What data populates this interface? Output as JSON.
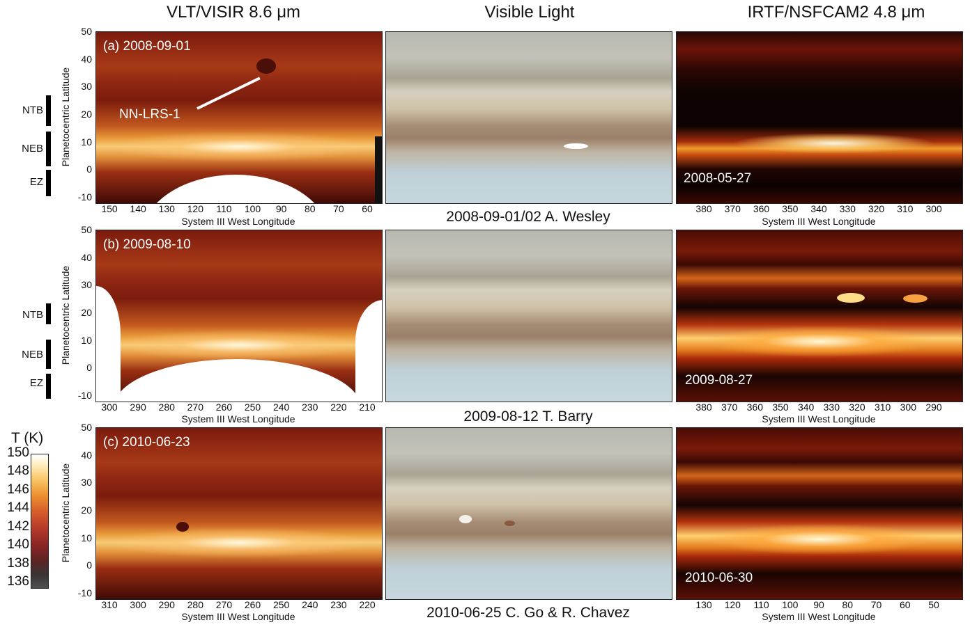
{
  "column_titles": {
    "visir": "VLT/VISIR 8.6 μm",
    "visible": "Visible Light",
    "irtf": "IRTF/NSFCAM2 4.8 μm"
  },
  "rows": [
    {
      "visir_label": "(a) 2008-09-01",
      "visir_lon_ticks": [
        "150",
        "140",
        "130",
        "120",
        "110",
        "100",
        "90",
        "80",
        "70",
        "60"
      ],
      "visible_credit": "2008-09-01/02 A. Wesley",
      "irtf_date": "2008-05-27",
      "irtf_lon_ticks": [
        "380",
        "370",
        "360",
        "350",
        "340",
        "330",
        "320",
        "310",
        "300"
      ]
    },
    {
      "visir_label": "(b) 2009-08-10",
      "visir_lon_ticks": [
        "300",
        "290",
        "280",
        "270",
        "260",
        "250",
        "240",
        "230",
        "220",
        "210"
      ],
      "visible_credit": "2009-08-12 T. Barry",
      "irtf_date": "2009-08-27",
      "irtf_lon_ticks": [
        "380",
        "370",
        "360",
        "350",
        "340",
        "330",
        "320",
        "310",
        "300",
        "290"
      ]
    },
    {
      "visir_label": "(c) 2010-06-23",
      "visir_lon_ticks": [
        "310",
        "300",
        "290",
        "280",
        "270",
        "260",
        "250",
        "240",
        "230",
        "220"
      ],
      "visible_credit": "2010-06-25 C. Go & R. Chavez",
      "irtf_date": "2010-06-30",
      "irtf_lon_ticks": [
        "130",
        "120",
        "110",
        "100",
        "90",
        "80",
        "70",
        "60",
        "50"
      ]
    }
  ],
  "lat_ticks": [
    "50",
    "40",
    "30",
    "20",
    "10",
    "0",
    "-10"
  ],
  "axis": {
    "y_label": "Planetocentric Latitude",
    "x_label": "System III West Longitude"
  },
  "bands": {
    "ntb": "NTB",
    "neb": "NEB",
    "ez": "EZ"
  },
  "annotation": "NN-LRS-1",
  "colorbar": {
    "label": "T (K)",
    "ticks": [
      "150",
      "148",
      "146",
      "144",
      "142",
      "140",
      "138",
      "136"
    ]
  }
}
